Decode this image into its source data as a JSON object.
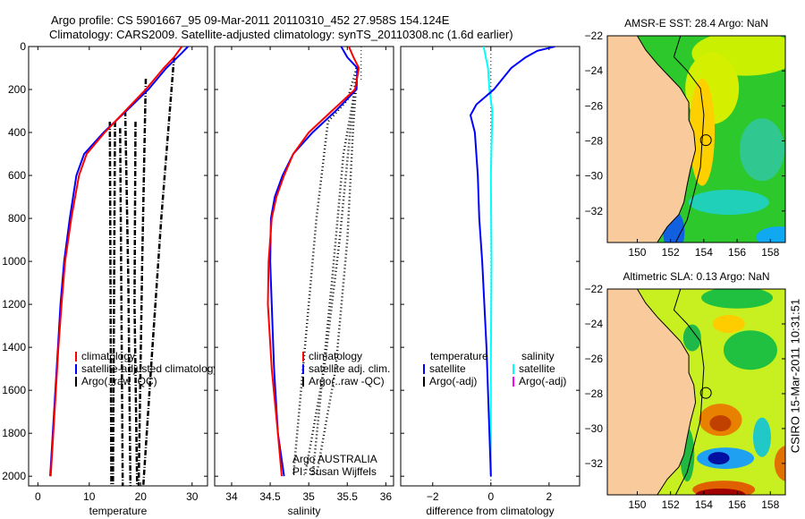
{
  "title_line1": "Argo profile: CS 5901667_95 09-Mar-2011 20110310_452 27.958S 154.124E",
  "title_line2": "Climatology: CARS2009. Satellite-adjusted climatology: synTS_20110308.nc (1.6d earlier)",
  "footer_stamp": "CSIRO 15-Mar-2011 10:31:51",
  "colors": {
    "climatology": "#ff0000",
    "satellite": "#0000ff",
    "argo": "#000000",
    "salinity_satellite": "#00ffff",
    "salinity_argo": "#ff00ff",
    "land": "#f9cb9c"
  },
  "chart_data": [
    {
      "type": "line",
      "name": "temperature",
      "xlabel": "temperature",
      "xlim": [
        -1.8,
        33
      ],
      "ylim": [
        2045,
        0
      ],
      "xticks": [
        0,
        10,
        20,
        30
      ],
      "yticks": [
        0,
        200,
        400,
        600,
        800,
        1000,
        1200,
        1400,
        1600,
        1800,
        2000
      ],
      "legend": [
        "climatology",
        "satellite-adjusted climatology",
        "Argo(..raw -QC)"
      ],
      "series": [
        {
          "name": "climatology",
          "color": "#ff0000",
          "points": [
            [
              28,
              0
            ],
            [
              26.5,
              50
            ],
            [
              24.5,
              100
            ],
            [
              21,
              200
            ],
            [
              17,
              300
            ],
            [
              13,
              400
            ],
            [
              9.5,
              500
            ],
            [
              8,
              600
            ],
            [
              6.5,
              800
            ],
            [
              5.3,
              1000
            ],
            [
              4.6,
              1200
            ],
            [
              4,
              1400
            ],
            [
              3.5,
              1600
            ],
            [
              3,
              1800
            ],
            [
              2.5,
              2000
            ]
          ]
        },
        {
          "name": "satellite-adjusted climatology",
          "color": "#0000ff",
          "points": [
            [
              29.2,
              0
            ],
            [
              28,
              30
            ],
            [
              25,
              100
            ],
            [
              21.5,
              200
            ],
            [
              17.2,
              300
            ],
            [
              12.8,
              400
            ],
            [
              9,
              500
            ],
            [
              7.5,
              600
            ],
            [
              6.2,
              800
            ],
            [
              5.1,
              1000
            ],
            [
              4.4,
              1200
            ],
            [
              3.9,
              1400
            ],
            [
              3.4,
              1600
            ],
            [
              2.9,
              1800
            ],
            [
              2.4,
              2000
            ]
          ]
        },
        {
          "name": "Argo(..raw -QC)",
          "color": "#000000",
          "dash": "6,2,1,2",
          "points": [
            [
              26.5,
              50
            ],
            [
              24,
              800
            ],
            [
              22,
              1500
            ],
            [
              20.5,
              2045
            ]
          ]
        },
        {
          "name": "Argo(..raw -QC)",
          "color": "#000000",
          "dash": "6,2,1,2",
          "points": [
            [
              21,
              150
            ],
            [
              20.3,
              1000
            ],
            [
              19.6,
              2045
            ]
          ]
        },
        {
          "name": "Argo(..raw -QC)",
          "color": "#000000",
          "dash": "6,2,1,2",
          "points": [
            [
              17,
              300
            ],
            [
              17.6,
              1100
            ],
            [
              18,
              2045
            ]
          ]
        },
        {
          "name": "Argo(..raw -QC)",
          "color": "#000000",
          "dash": "6,2,1,2",
          "points": [
            [
              15,
              350
            ],
            [
              14.6,
              2045
            ]
          ]
        },
        {
          "name": "Argo(..raw -QC)",
          "color": "#000000",
          "dash": "6,2,1,2",
          "points": [
            [
              14,
              350
            ],
            [
              14.3,
              2045
            ]
          ]
        },
        {
          "name": "Argo(..raw -QC)",
          "color": "#000000",
          "dash": "6,2,1,2",
          "points": [
            [
              19,
              350
            ],
            [
              18.8,
              1200
            ],
            [
              19.3,
              2045
            ]
          ]
        },
        {
          "name": "Argo(..raw -QC)",
          "color": "#000000",
          "dash": "6,2,1,2",
          "points": [
            [
              16,
              380
            ],
            [
              16.5,
              2045
            ]
          ]
        }
      ]
    },
    {
      "type": "line",
      "name": "salinity",
      "xlabel": "salinity",
      "xlim": [
        33.78,
        36.1
      ],
      "ylim": [
        2045,
        0
      ],
      "xticks": [
        34,
        34.5,
        35,
        35.5,
        36
      ],
      "legend": [
        "climatology",
        "satellite adj. clim.",
        "Argo(..raw -QC)"
      ],
      "annotation": [
        "Argo AUSTRALIA",
        "PI: Susan Wijffels"
      ],
      "series": [
        {
          "name": "climatology",
          "color": "#ff0000",
          "points": [
            [
              35.52,
              0
            ],
            [
              35.58,
              50
            ],
            [
              35.65,
              100
            ],
            [
              35.6,
              200
            ],
            [
              35.3,
              300
            ],
            [
              35.0,
              400
            ],
            [
              34.8,
              500
            ],
            [
              34.68,
              600
            ],
            [
              34.58,
              700
            ],
            [
              34.52,
              800
            ],
            [
              34.48,
              1000
            ],
            [
              34.47,
              1200
            ],
            [
              34.52,
              1500
            ],
            [
              34.6,
              1800
            ],
            [
              34.65,
              2000
            ]
          ]
        },
        {
          "name": "satellite adj. clim.",
          "color": "#0000ff",
          "points": [
            [
              35.42,
              0
            ],
            [
              35.5,
              50
            ],
            [
              35.63,
              100
            ],
            [
              35.62,
              200
            ],
            [
              35.35,
              300
            ],
            [
              35.05,
              400
            ],
            [
              34.8,
              500
            ],
            [
              34.66,
              600
            ],
            [
              34.56,
              700
            ],
            [
              34.51,
              800
            ],
            [
              34.5,
              1000
            ],
            [
              34.52,
              1200
            ],
            [
              34.55,
              1500
            ],
            [
              34.6,
              1800
            ],
            [
              34.68,
              2000
            ]
          ]
        },
        {
          "name": "Argo(..raw -QC)",
          "color": "#000000",
          "dash": "1,3",
          "points": [
            [
              35.62,
              100
            ],
            [
              35.5,
              250
            ],
            [
              35.25,
              350
            ],
            [
              35.1,
              800
            ],
            [
              34.95,
              1400
            ],
            [
              34.8,
              2000
            ]
          ]
        },
        {
          "name": "Argo(..raw -QC)",
          "color": "#000000",
          "dash": "1,3",
          "points": [
            [
              35.62,
              100
            ],
            [
              35.55,
              350
            ],
            [
              35.4,
              900
            ],
            [
              35.2,
              1500
            ],
            [
              34.95,
              2000
            ]
          ]
        },
        {
          "name": "Argo(..raw -QC)",
          "color": "#000000",
          "dash": "1,3",
          "points": [
            [
              35.63,
              100
            ],
            [
              35.58,
              350
            ],
            [
              35.5,
              900
            ],
            [
              35.35,
              1500
            ],
            [
              35.1,
              2000
            ]
          ]
        },
        {
          "name": "Argo(..raw -QC)",
          "color": "#000000",
          "dash": "1,3",
          "points": [
            [
              35.6,
              200
            ],
            [
              35.45,
              500
            ],
            [
              35.3,
              1100
            ],
            [
              35.05,
              2000
            ]
          ]
        }
      ]
    },
    {
      "type": "line",
      "name": "difference",
      "xlabel": "difference from climatology",
      "xlim": [
        -3.1,
        3.05
      ],
      "ylim": [
        2045,
        0
      ],
      "xticks": [
        -2,
        0,
        2
      ],
      "legend_temperature": {
        "header": "temperature",
        "items": [
          "satellite",
          "Argo(-adj)"
        ]
      },
      "legend_salinity": {
        "header": "salinity",
        "items": [
          "satellite",
          "Argo(-adj)"
        ]
      },
      "series": [
        {
          "name": "temperature satellite",
          "color": "#0000ff",
          "points": [
            [
              2.2,
              0
            ],
            [
              1.6,
              20
            ],
            [
              1.2,
              50
            ],
            [
              0.7,
              100
            ],
            [
              0.1,
              200
            ],
            [
              -0.5,
              270
            ],
            [
              -0.7,
              320
            ],
            [
              -0.55,
              400
            ],
            [
              -0.45,
              600
            ],
            [
              -0.4,
              800
            ],
            [
              -0.3,
              1000
            ],
            [
              -0.15,
              1400
            ],
            [
              -0.05,
              1800
            ],
            [
              0,
              2000
            ]
          ]
        },
        {
          "name": "salinity satellite",
          "color": "#00ffff",
          "points": [
            [
              -0.25,
              0
            ],
            [
              -0.1,
              100
            ],
            [
              -0.05,
              200
            ],
            [
              0.05,
              300
            ],
            [
              0,
              600
            ],
            [
              0.02,
              1000
            ],
            [
              0,
              1500
            ],
            [
              0,
              2000
            ]
          ]
        }
      ]
    },
    {
      "type": "heatmap",
      "name": "sst-map",
      "title": "AMSR-E SST: 28.4 Argo: NaN",
      "xticks": [
        150,
        152,
        154,
        156,
        158
      ],
      "yticks": [
        -22,
        -24,
        -26,
        -28,
        -30,
        -32
      ],
      "xlim": [
        148.2,
        158.9
      ],
      "ylim": [
        -33.8,
        -22
      ],
      "profile_location": [
        154.124,
        -27.958
      ]
    },
    {
      "type": "heatmap",
      "name": "sla-map",
      "title": "Altimetric SLA: 0.13 Argo: NaN",
      "xticks": [
        150,
        152,
        154,
        156,
        158
      ],
      "yticks": [
        -22,
        -24,
        -26,
        -28,
        -30,
        -32
      ],
      "xlim": [
        148.2,
        158.9
      ],
      "ylim": [
        -33.8,
        -22
      ],
      "profile_location": [
        154.124,
        -27.958
      ]
    }
  ]
}
